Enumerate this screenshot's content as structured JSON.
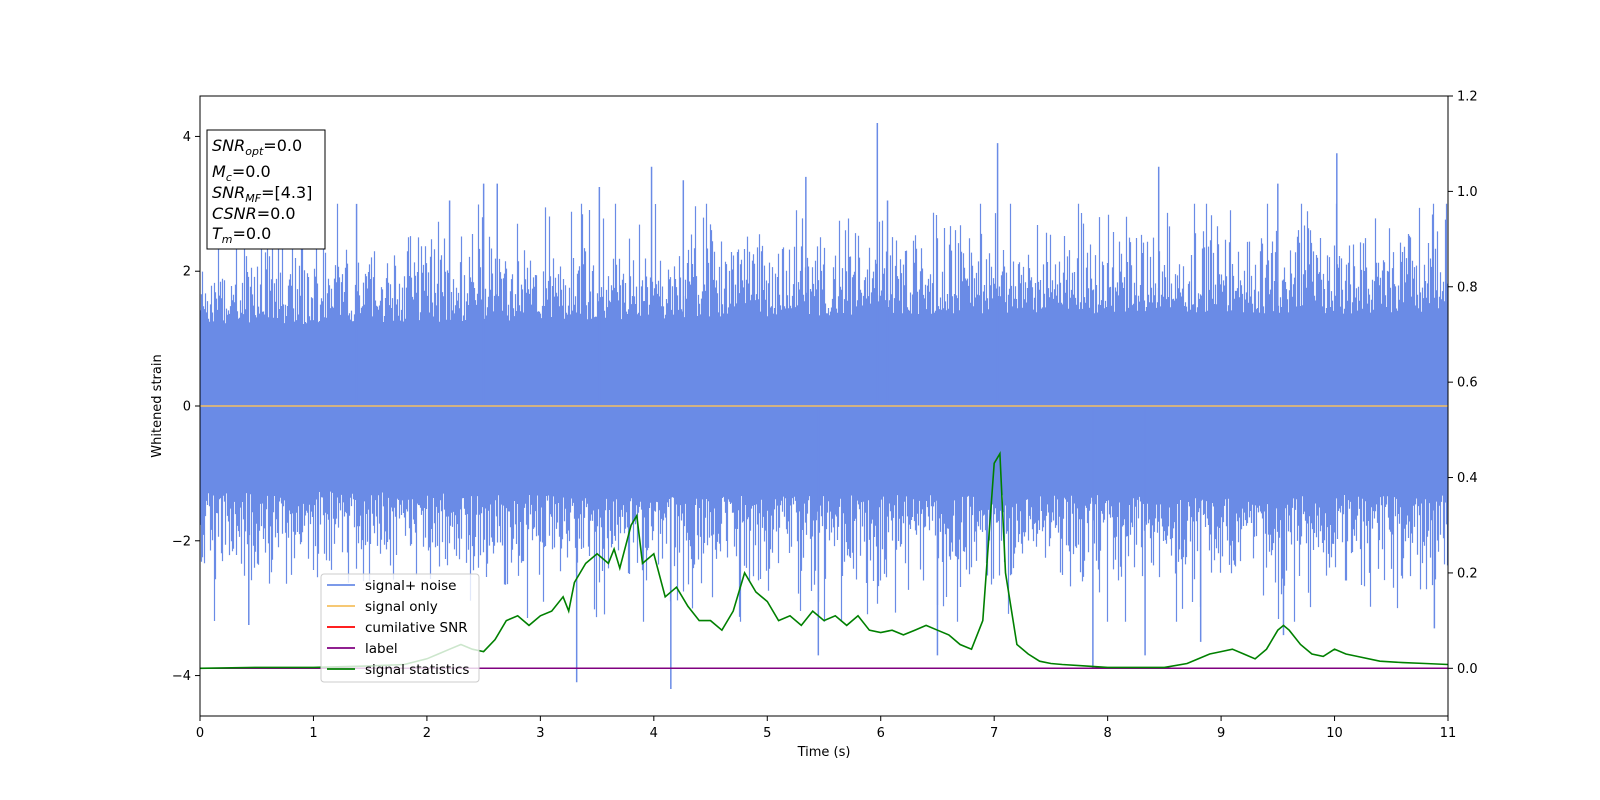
{
  "chart_data": {
    "type": "line",
    "xlabel": "Time (s)",
    "ylabel": "Whitened strain",
    "xlim": [
      0,
      11
    ],
    "ylim_left": [
      -4.6,
      4.6
    ],
    "ylim_right": [
      -0.1,
      1.2
    ],
    "x_ticks": [
      0,
      1,
      2,
      3,
      4,
      5,
      6,
      7,
      8,
      9,
      10,
      11
    ],
    "y_ticks_left": [
      -4,
      -2,
      0,
      2,
      4
    ],
    "y_ticks_right": [
      0.0,
      0.2,
      0.4,
      0.6,
      0.8,
      1.0,
      1.2
    ],
    "y_tick_labels_right": [
      "0.0",
      "0.2",
      "0.4",
      "0.6",
      "0.8",
      "1.0",
      "1.2"
    ],
    "grid": false,
    "legend_position": "lower-left",
    "colors": {
      "signal_noise": "#6a8be6",
      "signal_only": "#f5c060",
      "cumulative_snr": "#ff0000",
      "label": "#800080",
      "signal_statistics": "#008000"
    },
    "annotation_box": [
      {
        "base": "SNR",
        "sub": "opt",
        "value": "=0.0"
      },
      {
        "base": "M",
        "sub": "c",
        "value": "=0.0"
      },
      {
        "base": "SNR",
        "sub": "MF",
        "value": "=[4.3]"
      },
      {
        "base": "CSNR",
        "sub": "",
        "value": "=0.0"
      },
      {
        "base": "T",
        "sub": "m",
        "value": "=0.0"
      }
    ],
    "series": [
      {
        "name": "signal+ noise",
        "axis": "left",
        "description_kind": "noise",
        "envelope_upper": [
          2.2,
          2.2,
          2.25,
          2.3,
          2.35,
          2.4,
          2.45,
          2.5,
          2.45,
          2.5,
          2.45,
          2.5
        ],
        "envelope_lower": [
          -2.3,
          -2.3,
          -2.35,
          -2.4,
          -2.45,
          -2.4,
          -2.4,
          -2.4,
          -2.4,
          -2.5,
          -2.4,
          -2.4
        ],
        "spikes": [
          {
            "x": 0.43,
            "y": -3.25
          },
          {
            "x": 1.38,
            "y": 3.0
          },
          {
            "x": 2.2,
            "y": 3.05
          },
          {
            "x": 2.5,
            "y": 3.3
          },
          {
            "x": 2.62,
            "y": 3.3
          },
          {
            "x": 3.32,
            "y": -4.1
          },
          {
            "x": 3.52,
            "y": 3.25
          },
          {
            "x": 3.98,
            "y": 3.55
          },
          {
            "x": 4.15,
            "y": -4.2
          },
          {
            "x": 4.26,
            "y": 3.35
          },
          {
            "x": 5.34,
            "y": 3.4
          },
          {
            "x": 5.45,
            "y": -3.7
          },
          {
            "x": 5.97,
            "y": 4.2
          },
          {
            "x": 6.06,
            "y": 3.05
          },
          {
            "x": 6.5,
            "y": -3.7
          },
          {
            "x": 7.03,
            "y": 3.9
          },
          {
            "x": 7.87,
            "y": -3.9
          },
          {
            "x": 8.33,
            "y": -3.7
          },
          {
            "x": 8.45,
            "y": 3.55
          },
          {
            "x": 8.82,
            "y": -3.5
          },
          {
            "x": 9.5,
            "y": 3.3
          },
          {
            "x": 9.55,
            "y": -3.4
          },
          {
            "x": 10.02,
            "y": 3.75
          },
          {
            "x": 10.88,
            "y": -3.3
          }
        ]
      },
      {
        "name": "signal only",
        "axis": "left",
        "x": [
          0,
          11
        ],
        "y": [
          0,
          0
        ]
      },
      {
        "name": "cumilative SNR",
        "axis": "right",
        "x": [],
        "y": []
      },
      {
        "name": "label",
        "axis": "right",
        "x": [
          0,
          11
        ],
        "y": [
          0,
          0
        ]
      },
      {
        "name": "signal statistics",
        "axis": "right",
        "x": [
          0,
          0.5,
          1.0,
          1.5,
          1.8,
          2.0,
          2.1,
          2.2,
          2.3,
          2.4,
          2.5,
          2.6,
          2.7,
          2.8,
          2.9,
          3.0,
          3.1,
          3.2,
          3.25,
          3.3,
          3.4,
          3.5,
          3.6,
          3.65,
          3.7,
          3.8,
          3.85,
          3.9,
          4.0,
          4.1,
          4.2,
          4.3,
          4.4,
          4.5,
          4.6,
          4.7,
          4.8,
          4.9,
          5.0,
          5.1,
          5.2,
          5.3,
          5.4,
          5.5,
          5.6,
          5.7,
          5.8,
          5.9,
          6.0,
          6.1,
          6.2,
          6.3,
          6.4,
          6.5,
          6.6,
          6.7,
          6.8,
          6.9,
          7.0,
          7.05,
          7.1,
          7.2,
          7.3,
          7.4,
          7.5,
          7.6,
          7.8,
          8.0,
          8.5,
          8.7,
          8.8,
          8.9,
          9.0,
          9.1,
          9.2,
          9.3,
          9.4,
          9.5,
          9.55,
          9.6,
          9.7,
          9.8,
          9.9,
          10.0,
          10.1,
          10.2,
          10.4,
          10.6,
          10.8,
          11.0
        ],
        "y": [
          0.0,
          0.002,
          0.002,
          0.005,
          0.008,
          0.02,
          0.03,
          0.04,
          0.05,
          0.04,
          0.035,
          0.06,
          0.1,
          0.11,
          0.09,
          0.11,
          0.12,
          0.15,
          0.12,
          0.18,
          0.22,
          0.24,
          0.22,
          0.25,
          0.21,
          0.3,
          0.32,
          0.22,
          0.24,
          0.15,
          0.17,
          0.13,
          0.1,
          0.1,
          0.08,
          0.12,
          0.2,
          0.16,
          0.14,
          0.1,
          0.11,
          0.09,
          0.12,
          0.1,
          0.11,
          0.09,
          0.11,
          0.08,
          0.075,
          0.08,
          0.07,
          0.08,
          0.09,
          0.08,
          0.07,
          0.05,
          0.04,
          0.1,
          0.43,
          0.45,
          0.2,
          0.05,
          0.03,
          0.015,
          0.01,
          0.008,
          0.005,
          0.002,
          0.002,
          0.01,
          0.02,
          0.03,
          0.035,
          0.04,
          0.03,
          0.02,
          0.04,
          0.08,
          0.09,
          0.08,
          0.05,
          0.03,
          0.025,
          0.04,
          0.03,
          0.025,
          0.015,
          0.012,
          0.01,
          0.008
        ]
      }
    ]
  }
}
